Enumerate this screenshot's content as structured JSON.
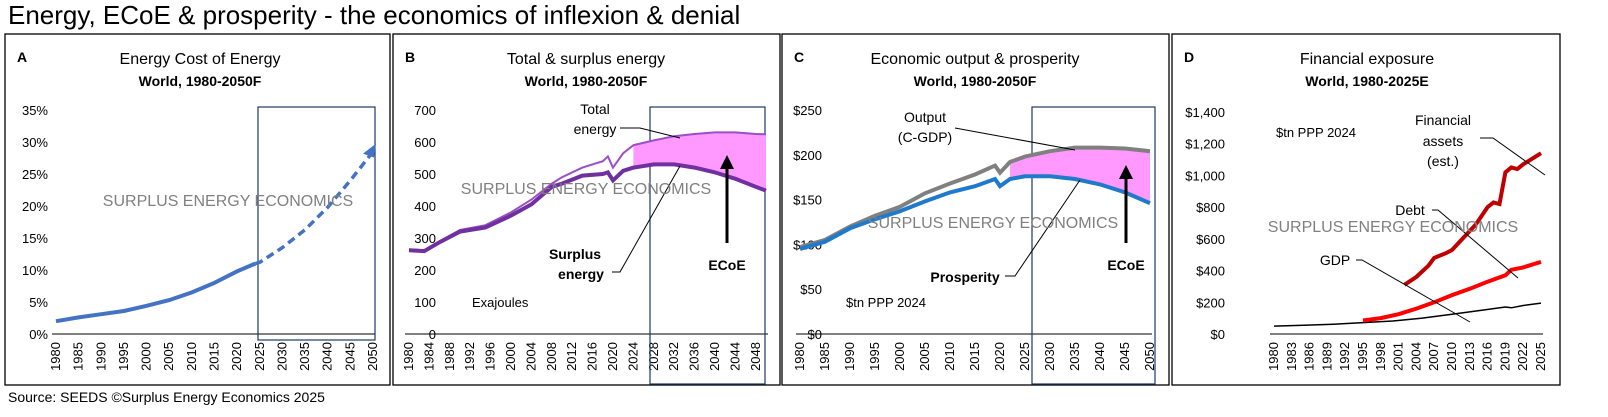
{
  "title": "Energy, ECoE & prosperity - the economics of inflexion & denial",
  "source": "Source: SEEDS  ©Surplus Energy Economics 2025",
  "watermark": "SURPLUS ENERGY ECONOMICS",
  "colors": {
    "ecoe": "#4472C4",
    "total": "#9B4FC6",
    "surplus": "#7030A0",
    "fill": "#FF99FF",
    "output": "#808080",
    "prosperity": "#1F7ACC",
    "fa": "#C00000",
    "debt": "#FF0000",
    "gdp": "#000000",
    "box": "#1F3864"
  },
  "chart_data": [
    {
      "type": "line",
      "letter": "A",
      "title": "Energy Cost of Energy",
      "subtitle": "World, 1980-2050F",
      "ylim": [
        0,
        35
      ],
      "yticks": [
        0,
        5,
        10,
        15,
        20,
        25,
        30,
        35
      ],
      "yfmt": "pct",
      "xlim": [
        1980,
        2050
      ],
      "xticks": [
        1980,
        1985,
        1990,
        1995,
        2000,
        2005,
        2010,
        2015,
        2020,
        2025,
        2030,
        2035,
        2040,
        2045,
        2050
      ],
      "forecast_from": 2025,
      "series": [
        {
          "name": "ECoE",
          "x": [
            1980,
            1985,
            1990,
            1995,
            2000,
            2005,
            2010,
            2015,
            2020,
            2024,
            2025,
            2030,
            2035,
            2040,
            2045,
            2050
          ],
          "y": [
            2,
            2.6,
            3.1,
            3.6,
            4.4,
            5.3,
            6.5,
            8,
            9.8,
            11,
            11.2,
            13.5,
            16.3,
            19.8,
            24,
            28.5
          ],
          "dashed_from": 2024
        }
      ],
      "annotations": []
    },
    {
      "type": "area",
      "letter": "B",
      "title": "Total & surplus energy",
      "subtitle": "World, 1980-2050F",
      "ylim": [
        0,
        700
      ],
      "yticks": [
        0,
        100,
        200,
        300,
        400,
        500,
        600,
        700
      ],
      "yfmt": "num",
      "xlim": [
        1980,
        2050
      ],
      "xticks": [
        1980,
        1984,
        1988,
        1992,
        1996,
        2000,
        2004,
        2008,
        2012,
        2016,
        2020,
        2024,
        2028,
        2032,
        2036,
        2040,
        2044,
        2048
      ],
      "forecast_from": 2026,
      "unit_label": "Exajoules",
      "series": [
        {
          "name": "Total energy",
          "x": [
            1980,
            1983,
            1986,
            1990,
            1995,
            2000,
            2004,
            2008,
            2010,
            2014,
            2018,
            2019,
            2020,
            2022,
            2024,
            2028,
            2032,
            2036,
            2040,
            2044,
            2048,
            2050
          ],
          "y": [
            265,
            262,
            290,
            325,
            340,
            380,
            420,
            470,
            490,
            520,
            540,
            555,
            520,
            565,
            590,
            605,
            618,
            625,
            630,
            630,
            625,
            624
          ]
        },
        {
          "name": "Surplus energy",
          "x": [
            1980,
            1983,
            1986,
            1990,
            1995,
            2000,
            2004,
            2008,
            2010,
            2014,
            2018,
            2019,
            2020,
            2022,
            2024,
            2028,
            2032,
            2036,
            2040,
            2044,
            2048,
            2050
          ],
          "y": [
            262,
            259,
            287,
            320,
            333,
            370,
            405,
            460,
            470,
            495,
            500,
            505,
            480,
            510,
            520,
            530,
            530,
            520,
            505,
            485,
            460,
            448
          ]
        }
      ],
      "annotations": [
        "Total energy",
        "Surplus energy",
        "ECoE"
      ]
    },
    {
      "type": "area",
      "letter": "C",
      "title": "Economic output & prosperity",
      "subtitle": "World, 1980-2050F",
      "ylim": [
        0,
        250
      ],
      "yticks": [
        0,
        50,
        100,
        150,
        200,
        250
      ],
      "yfmt": "usd",
      "xlim": [
        1980,
        2050
      ],
      "xticks": [
        1980,
        1985,
        1990,
        1995,
        2000,
        2005,
        2010,
        2015,
        2020,
        2025,
        2030,
        2035,
        2040,
        2045,
        2050
      ],
      "forecast_from": 2023,
      "unit_label": "$tn PPP 2024",
      "series": [
        {
          "name": "Output (C-GDP)",
          "x": [
            1980,
            1985,
            1990,
            1995,
            2000,
            2005,
            2010,
            2015,
            2019,
            2020,
            2022,
            2025,
            2030,
            2035,
            2040,
            2045,
            2050
          ],
          "y": [
            97,
            105,
            120,
            132,
            142,
            157,
            168,
            178,
            188,
            180,
            192,
            198,
            204,
            208,
            208,
            207,
            204
          ]
        },
        {
          "name": "Prosperity",
          "x": [
            1980,
            1985,
            1990,
            1995,
            2000,
            2005,
            2010,
            2015,
            2019,
            2020,
            2022,
            2025,
            2030,
            2035,
            2040,
            2045,
            2050
          ],
          "y": [
            95,
            103,
            118,
            128,
            137,
            148,
            158,
            165,
            173,
            165,
            173,
            176,
            176,
            173,
            167,
            158,
            146
          ]
        }
      ],
      "annotations": [
        "Output",
        "(C-GDP)",
        "Prosperity",
        "ECoE"
      ]
    },
    {
      "type": "line",
      "letter": "D",
      "title": "Financial exposure",
      "subtitle": "World, 1980-2025E",
      "ylim": [
        0,
        1400
      ],
      "yticks": [
        0,
        200,
        400,
        600,
        800,
        1000,
        1200,
        1400
      ],
      "yfmt": "usdc",
      "xlim": [
        1980,
        2025
      ],
      "xticks": [
        1980,
        1983,
        1986,
        1989,
        1992,
        1995,
        1998,
        2001,
        2004,
        2007,
        2010,
        2013,
        2016,
        2019,
        2022,
        2025
      ],
      "unit_label": "$tn PPP 2024",
      "series": [
        {
          "name": "GDP",
          "x": [
            1980,
            1985,
            1990,
            1995,
            2000,
            2005,
            2010,
            2015,
            2019,
            2020,
            2022,
            2025
          ],
          "y": [
            50,
            55,
            62,
            72,
            82,
            100,
            125,
            150,
            170,
            165,
            180,
            195
          ]
        },
        {
          "name": "Debt",
          "x": [
            1995,
            1998,
            2001,
            2004,
            2007,
            2010,
            2013,
            2016,
            2019,
            2020,
            2022,
            2025
          ],
          "y": [
            85,
            100,
            125,
            160,
            200,
            245,
            285,
            330,
            370,
            405,
            420,
            455
          ]
        },
        {
          "name": "Financial assets (est.)",
          "x": [
            2002,
            2004,
            2006,
            2007,
            2009,
            2010,
            2012,
            2014,
            2016,
            2017,
            2018,
            2019,
            2020,
            2021,
            2022,
            2025
          ],
          "y": [
            310,
            360,
            430,
            480,
            510,
            530,
            610,
            690,
            800,
            830,
            820,
            1020,
            1050,
            1040,
            1070,
            1140
          ]
        }
      ],
      "annotations": [
        "Financial",
        "assets",
        "(est.)",
        "Debt",
        "GDP"
      ]
    }
  ]
}
